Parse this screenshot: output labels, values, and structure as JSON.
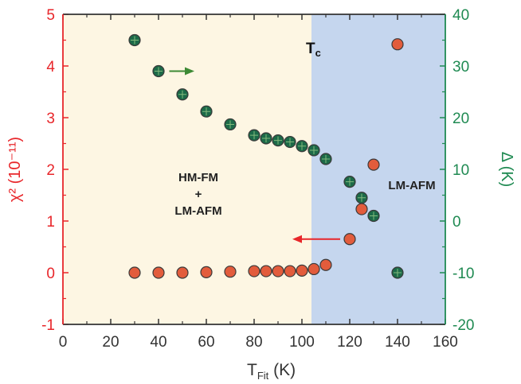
{
  "chart_data": {
    "type": "scatter",
    "x_axis": {
      "label_main": "T",
      "label_sub": "Fit",
      "label_unit": " (K)",
      "range": [
        0,
        160
      ],
      "ticks": [
        "0",
        "20",
        "40",
        "60",
        "80",
        "100",
        "120",
        "140",
        "160"
      ]
    },
    "y_left_axis": {
      "label": "χ² (10⁻¹¹)",
      "range": [
        -1,
        5
      ],
      "ticks": [
        "-1",
        "0",
        "1",
        "2",
        "3",
        "4",
        "5"
      ],
      "color": "#e8262a"
    },
    "y_right_axis": {
      "label": "Δ (K)",
      "range": [
        -20,
        40
      ],
      "ticks": [
        "-20",
        "-10",
        "0",
        "10",
        "20",
        "30",
        "40"
      ],
      "color": "#1f8a52"
    },
    "regions": [
      {
        "x_range": [
          0,
          104
        ],
        "color": "#fdf6e3"
      },
      {
        "x_range": [
          104,
          160
        ],
        "color": "#c5d6ee"
      }
    ],
    "region_labels": {
      "left_line1": "HM-FM",
      "left_line2": "+",
      "left_line3": "LM-AFM",
      "right": "LM-AFM"
    },
    "tc_label": {
      "main": "T",
      "sub": "c"
    },
    "series": [
      {
        "axis": "left",
        "color": "#e25c3c",
        "points": [
          [
            30,
            0.0
          ],
          [
            40,
            0.0
          ],
          [
            50,
            0.0
          ],
          [
            60,
            0.01
          ],
          [
            70,
            0.02
          ],
          [
            80,
            0.03
          ],
          [
            85,
            0.03
          ],
          [
            90,
            0.03
          ],
          [
            95,
            0.03
          ],
          [
            100,
            0.04
          ],
          [
            105,
            0.07
          ],
          [
            110,
            0.15
          ],
          [
            120,
            0.65
          ],
          [
            125,
            1.23
          ],
          [
            130,
            2.09
          ],
          [
            140,
            4.42
          ]
        ]
      },
      {
        "axis": "right",
        "color": "#1c6a48",
        "points": [
          [
            30,
            35.0
          ],
          [
            40,
            29.0
          ],
          [
            50,
            24.5
          ],
          [
            60,
            21.2
          ],
          [
            70,
            18.7
          ],
          [
            80,
            16.6
          ],
          [
            85,
            16.0
          ],
          [
            90,
            15.6
          ],
          [
            95,
            15.3
          ],
          [
            100,
            14.5
          ],
          [
            105,
            13.7
          ],
          [
            110,
            12.0
          ],
          [
            120,
            7.6
          ],
          [
            125,
            4.5
          ],
          [
            130,
            1.0
          ],
          [
            140,
            -10.0
          ]
        ]
      }
    ],
    "arrows": [
      {
        "direction": "right",
        "axis": "right",
        "color": "#3d8a35",
        "x_from": 44.5,
        "x_to": 55,
        "y": 29.0
      },
      {
        "direction": "left",
        "axis": "left",
        "color": "#e8262a",
        "x_from": 116,
        "x_to": 96,
        "y": 0.65
      }
    ]
  }
}
